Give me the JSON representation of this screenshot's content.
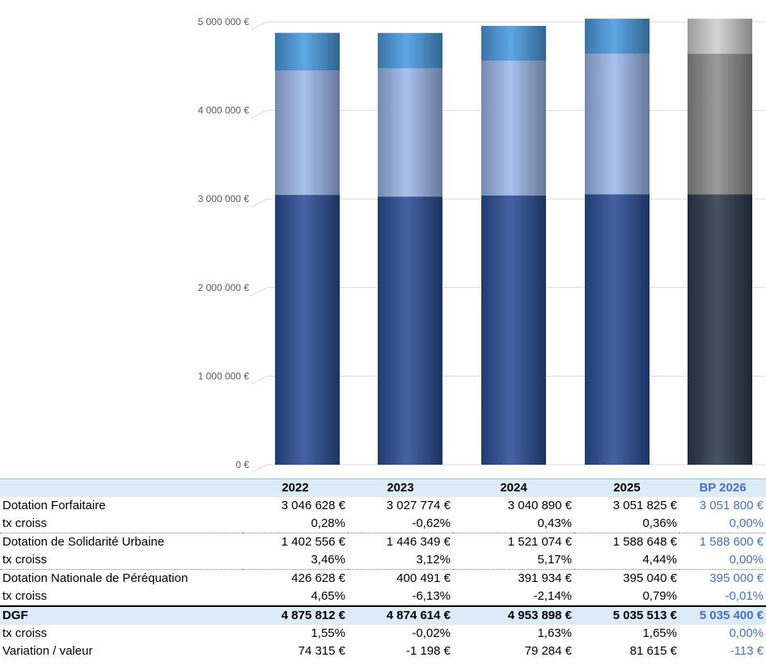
{
  "chart_data": {
    "type": "bar",
    "stacked": true,
    "categories": [
      "2022",
      "2023",
      "2024",
      "2025",
      "BP 2026"
    ],
    "series": [
      {
        "values": [
          3046628,
          3027774,
          3040890,
          3051825,
          3051800
        ],
        "color": "#2a4e96"
      },
      {
        "values": [
          1402556,
          1446349,
          1521074,
          1588648,
          1588600
        ],
        "color": "#9db8ec"
      },
      {
        "values": [
          426628,
          400491,
          391934,
          395040,
          395000
        ],
        "color": "#4a9be0"
      }
    ],
    "projection_colors": [
      "#2d3a4d",
      "#8c8c8c",
      "#cfcfcf"
    ],
    "ylim": [
      0,
      5000000
    ],
    "yticks": [
      0,
      1000000,
      2000000,
      3000000,
      4000000,
      5000000
    ],
    "ytick_labels": [
      "0 €",
      "1 000 000 €",
      "2 000 000 €",
      "3 000 000 €",
      "4 000 000 €",
      "5 000 000 €"
    ],
    "grid": true
  },
  "table": {
    "headers": [
      "",
      "2022",
      "2023",
      "2024",
      "2025",
      "BP 2026"
    ],
    "rows": [
      {
        "kind": "value",
        "label": "Dotation Forfaitaire",
        "cells": [
          "3 046 628 €",
          "3 027 774 €",
          "3 040 890 €",
          "3 051 825 €",
          "3 051 800 €"
        ]
      },
      {
        "kind": "tx",
        "label": "tx croiss",
        "cells": [
          "0,28%",
          "-0,62%",
          "0,43%",
          "0,36%",
          "0,00%"
        ]
      },
      {
        "kind": "value",
        "label": "Dotation de Solidarité Urbaine",
        "cells": [
          "1 402 556 €",
          "1 446 349 €",
          "1 521 074 €",
          "1 588 648 €",
          "1 588 600 €"
        ]
      },
      {
        "kind": "tx",
        "label": "tx croiss",
        "cells": [
          "3,46%",
          "3,12%",
          "5,17%",
          "4,44%",
          "0,00%"
        ]
      },
      {
        "kind": "value",
        "label": "Dotation Nationale de Péréquation",
        "cells": [
          "426 628 €",
          "400 491 €",
          "391 934 €",
          "395 040 €",
          "395 000 €"
        ]
      },
      {
        "kind": "tx-last",
        "label": "tx croiss",
        "cells": [
          "4,65%",
          "-6,13%",
          "-2,14%",
          "0,79%",
          "-0,01%"
        ]
      },
      {
        "kind": "total",
        "label": "DGF",
        "cells": [
          "4 875 812 €",
          "4 874 614 €",
          "4 953 898 €",
          "5 035 513 €",
          "5 035 400 €"
        ]
      },
      {
        "kind": "tx-plain",
        "label": "tx croiss",
        "cells": [
          "1,55%",
          "-0,02%",
          "1,63%",
          "1,65%",
          "0,00%"
        ]
      },
      {
        "kind": "plain",
        "label": "Variation / valeur",
        "cells": [
          "74 315 €",
          "-1 198 €",
          "79 284 €",
          "81 615 €",
          "-113 €"
        ]
      }
    ]
  }
}
